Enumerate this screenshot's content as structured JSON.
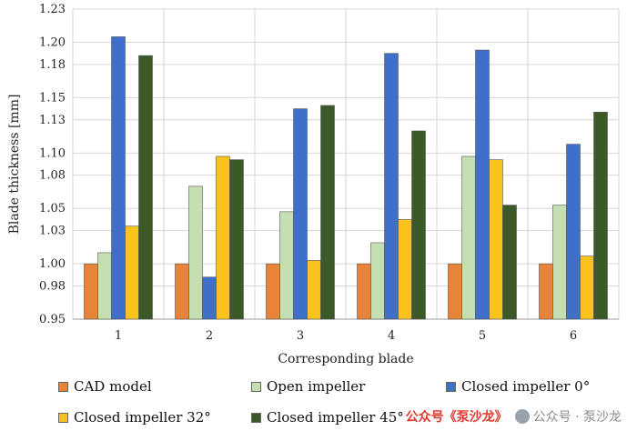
{
  "chart_data": {
    "type": "bar",
    "xlabel": "Corresponding blade",
    "ylabel": "Blade thickness [mm]",
    "ylim": [
      0.95,
      1.23
    ],
    "yticks": [
      "0.95",
      "0.98",
      "1.00",
      "1.03",
      "1.05",
      "1.08",
      "1.10",
      "1.13",
      "1.15",
      "1.18",
      "1.20",
      "1.23"
    ],
    "categories": [
      "1",
      "2",
      "3",
      "4",
      "5",
      "6"
    ],
    "grid": true,
    "legend_position": "bottom",
    "series": [
      {
        "name": "CAD model",
        "color": "#E8843A",
        "values": [
          1.0,
          1.0,
          1.0,
          1.0,
          1.0,
          1.0
        ]
      },
      {
        "name": "Open impeller",
        "color": "#C5DFB2",
        "values": [
          1.01,
          1.07,
          1.047,
          1.019,
          1.097,
          1.053
        ]
      },
      {
        "name": "Closed impeller 0°",
        "color": "#3E6FC9",
        "values": [
          1.205,
          0.988,
          1.14,
          1.19,
          1.193,
          1.108
        ]
      },
      {
        "name": "Closed impeller 32°",
        "color": "#F9C21D",
        "values": [
          1.034,
          1.097,
          1.003,
          1.04,
          1.094,
          1.007
        ]
      },
      {
        "name": "Closed impeller 45°",
        "color": "#3B5A27",
        "values": [
          1.188,
          1.094,
          1.143,
          1.12,
          1.053,
          1.137
        ]
      }
    ]
  },
  "watermark": {
    "text_red": "公众号《泵沙龙》",
    "text_gray": "公众号 · 泵沙龙"
  }
}
